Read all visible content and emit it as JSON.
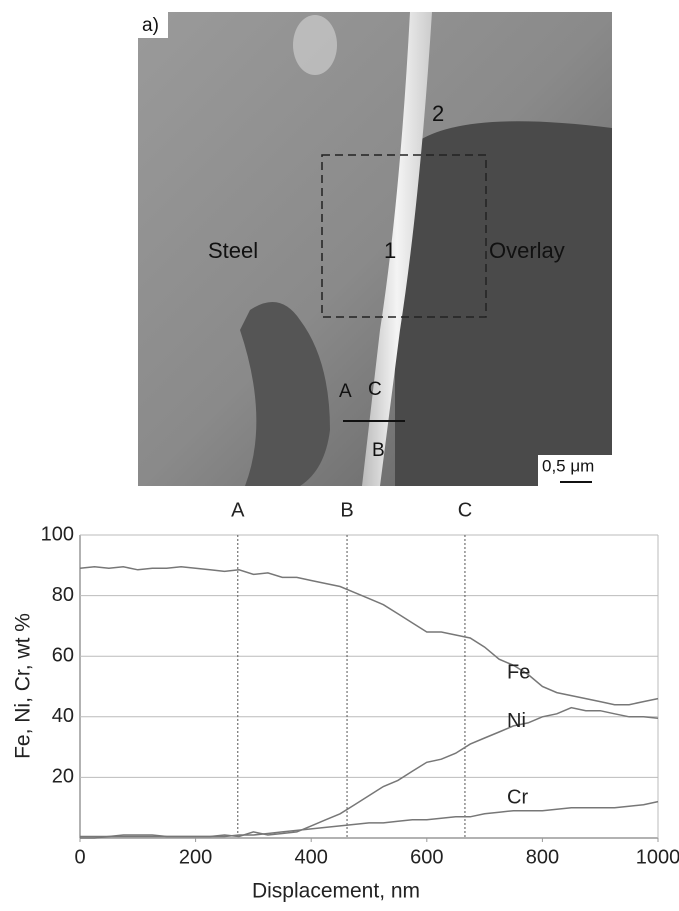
{
  "image": {
    "labels": {
      "panel": "a)",
      "left": "Steel",
      "right": "Overlay",
      "region1": "1",
      "region2": "2",
      "pointA": "A",
      "pointB": "B",
      "pointC": "C",
      "scale": "0,5 μm"
    }
  },
  "chart_data": {
    "type": "line",
    "xlabel": "Displacement, nm",
    "ylabel": "Fe, Ni, Cr, wt %",
    "xlim": [
      0,
      1000
    ],
    "ylim": [
      0,
      100
    ],
    "xticks": [
      0,
      200,
      400,
      600,
      800,
      1000
    ],
    "yticks": [
      20,
      40,
      60,
      80,
      100
    ],
    "grid": true,
    "markers": [
      {
        "label": "A",
        "x": 273
      },
      {
        "label": "B",
        "x": 462
      },
      {
        "label": "C",
        "x": 666
      }
    ],
    "x": [
      0,
      25,
      50,
      75,
      100,
      125,
      150,
      175,
      200,
      225,
      250,
      275,
      300,
      325,
      350,
      375,
      400,
      425,
      450,
      475,
      500,
      525,
      550,
      575,
      600,
      625,
      650,
      675,
      700,
      725,
      750,
      775,
      800,
      825,
      850,
      875,
      900,
      925,
      950,
      975,
      1000
    ],
    "series": [
      {
        "name": "Fe",
        "color": "#777777",
        "values": [
          89,
          89.5,
          89,
          89.5,
          88.5,
          89,
          89,
          89.5,
          89,
          88.5,
          88,
          88.5,
          87,
          87.5,
          86,
          86,
          85,
          84,
          83,
          81,
          79,
          77,
          74,
          71,
          68,
          68,
          67,
          66,
          63,
          59,
          57,
          54,
          50,
          48,
          47,
          46,
          45,
          44,
          44,
          45,
          46
        ]
      },
      {
        "name": "Ni",
        "color": "#777777",
        "values": [
          0.5,
          0.5,
          0.5,
          1,
          1,
          1,
          0.5,
          0.5,
          0.5,
          0.5,
          1,
          0.5,
          2,
          1,
          1.5,
          2,
          4,
          6,
          8,
          11,
          14,
          17,
          19,
          22,
          25,
          26,
          28,
          31,
          33,
          35,
          37,
          38,
          40,
          41,
          43,
          42,
          42,
          41,
          40,
          40,
          39.5
        ]
      },
      {
        "name": "Cr",
        "color": "#777777",
        "values": [
          0,
          0,
          0.5,
          0.5,
          0.5,
          0.5,
          0.5,
          0.5,
          0.5,
          0.5,
          0.5,
          1,
          1,
          1.5,
          2,
          2.5,
          3,
          3.5,
          4,
          4.5,
          5,
          5,
          5.5,
          6,
          6,
          6.5,
          7,
          7,
          8,
          8.5,
          9,
          9,
          9,
          9.5,
          10,
          10,
          10,
          10,
          10.5,
          11,
          12
        ]
      }
    ]
  }
}
